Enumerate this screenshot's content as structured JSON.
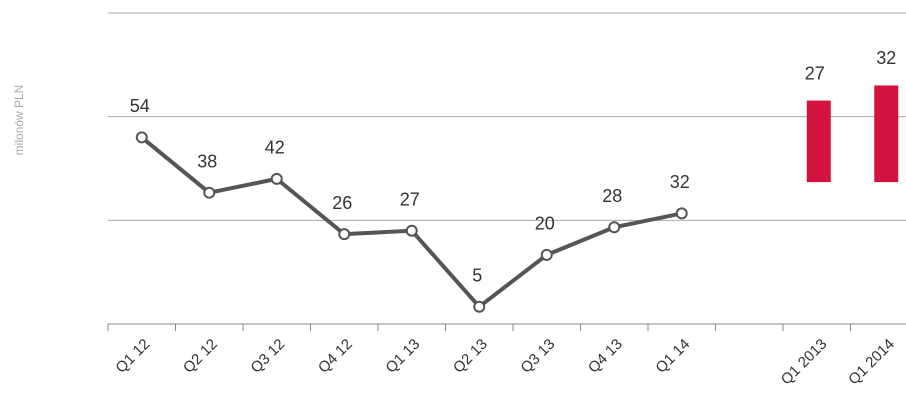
{
  "chart_data": [
    {
      "type": "line",
      "y_label": "milonów PLN",
      "categories": [
        "Q1 12",
        "Q2 12",
        "Q3 12",
        "Q4 12",
        "Q1 13",
        "Q2 13",
        "Q3 13",
        "Q4 13",
        "Q1 14"
      ],
      "series": [
        {
          "color": "#555555",
          "values": [
            54,
            38,
            42,
            26,
            27,
            5,
            20,
            28,
            32
          ]
        }
      ],
      "ylim": [
        0,
        90
      ],
      "yticks": [
        0,
        30,
        60,
        90
      ],
      "grid": true
    },
    {
      "type": "bar",
      "categories": [
        "Q1 2013",
        "Q1 2014"
      ],
      "values": [
        27,
        32
      ],
      "color": "#d4123f",
      "ylim": [
        -47,
        56
      ]
    }
  ]
}
